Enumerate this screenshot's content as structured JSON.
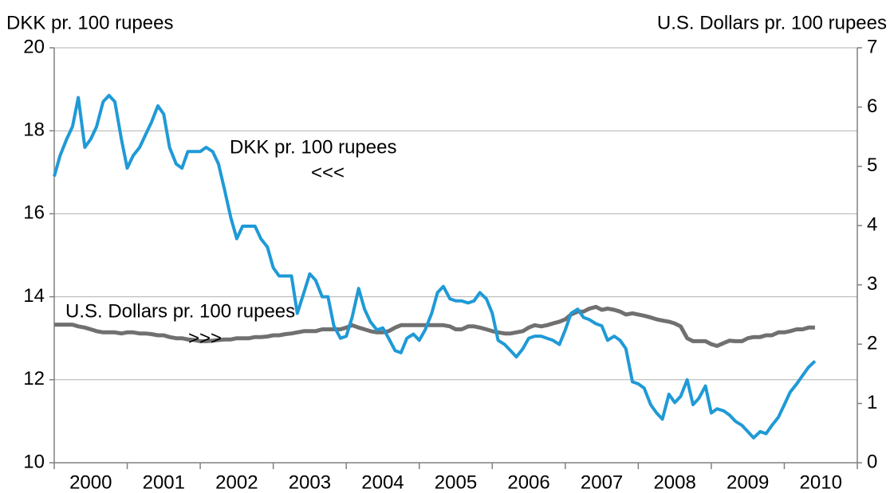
{
  "chart_data": {
    "type": "line",
    "ylabel": "DKK pr. 100 rupees",
    "y2label": "U.S. Dollars pr. 100 rupees",
    "annotations": [
      {
        "text": "DKK pr. 100 rupees"
      },
      {
        "text": "<<<"
      },
      {
        "text": "U.S. Dollars pr. 100 rupees"
      },
      {
        "text": ">>>"
      }
    ],
    "xlim": [
      2000,
      2011
    ],
    "xticks": [
      2000,
      2001,
      2002,
      2003,
      2004,
      2005,
      2006,
      2007,
      2008,
      2009,
      2010,
      2011
    ],
    "xlabels": [
      {
        "value": 2000.5,
        "label": "2000"
      },
      {
        "value": 2001.5,
        "label": "2001"
      },
      {
        "value": 2002.5,
        "label": "2002"
      },
      {
        "value": 2003.5,
        "label": "2003"
      },
      {
        "value": 2004.5,
        "label": "2004"
      },
      {
        "value": 2005.5,
        "label": "2005"
      },
      {
        "value": 2006.5,
        "label": "2006"
      },
      {
        "value": 2007.5,
        "label": "2007"
      },
      {
        "value": 2008.5,
        "label": "2008"
      },
      {
        "value": 2009.5,
        "label": "2009"
      },
      {
        "value": 2010.5,
        "label": "2010"
      }
    ],
    "ylim": [
      10,
      20
    ],
    "yticks": [
      10,
      12,
      14,
      16,
      18,
      20
    ],
    "y2lim": [
      0,
      7
    ],
    "y2ticks": [
      0,
      1,
      2,
      3,
      4,
      5,
      6,
      7
    ],
    "grid": true,
    "x": [
      2000,
      2000.08,
      2000.17,
      2000.25,
      2000.33,
      2000.42,
      2000.5,
      2000.58,
      2000.67,
      2000.75,
      2000.83,
      2000.92,
      2001,
      2001.08,
      2001.17,
      2001.25,
      2001.33,
      2001.42,
      2001.5,
      2001.58,
      2001.67,
      2001.75,
      2001.83,
      2001.92,
      2002,
      2002.08,
      2002.17,
      2002.25,
      2002.33,
      2002.42,
      2002.5,
      2002.58,
      2002.67,
      2002.75,
      2002.83,
      2002.92,
      2003,
      2003.08,
      2003.17,
      2003.25,
      2003.33,
      2003.42,
      2003.5,
      2003.58,
      2003.67,
      2003.75,
      2003.83,
      2003.92,
      2004,
      2004.08,
      2004.17,
      2004.25,
      2004.33,
      2004.42,
      2004.5,
      2004.58,
      2004.67,
      2004.75,
      2004.83,
      2004.92,
      2005,
      2005.08,
      2005.17,
      2005.25,
      2005.33,
      2005.42,
      2005.5,
      2005.58,
      2005.67,
      2005.75,
      2005.83,
      2005.92,
      2006,
      2006.08,
      2006.17,
      2006.25,
      2006.33,
      2006.42,
      2006.5,
      2006.58,
      2006.67,
      2006.75,
      2006.83,
      2006.92,
      2007,
      2007.08,
      2007.17,
      2007.25,
      2007.33,
      2007.42,
      2007.5,
      2007.58,
      2007.67,
      2007.75,
      2007.83,
      2007.92,
      2008,
      2008.08,
      2008.17,
      2008.25,
      2008.33,
      2008.42,
      2008.5,
      2008.58,
      2008.67,
      2008.75,
      2008.83,
      2008.92,
      2009,
      2009.08,
      2009.17,
      2009.25,
      2009.33,
      2009.42,
      2009.5,
      2009.58,
      2009.67,
      2009.75,
      2009.83,
      2009.92,
      2010,
      2010.08,
      2010.17,
      2010.25,
      2010.33,
      2010.42
    ],
    "series": [
      {
        "name": "DKK pr. 100 rupees",
        "color": "#1f9ad6",
        "axis": "y",
        "values": [
          16.9,
          17.4,
          17.8,
          18.1,
          18.8,
          17.6,
          17.8,
          18.1,
          18.7,
          18.85,
          18.7,
          17.8,
          17.1,
          17.4,
          17.6,
          17.9,
          18.2,
          18.6,
          18.4,
          17.6,
          17.2,
          17.1,
          17.5,
          17.5,
          17.5,
          17.6,
          17.5,
          17.2,
          16.6,
          15.9,
          15.4,
          15.7,
          15.7,
          15.7,
          15.4,
          15.2,
          14.7,
          14.5,
          14.5,
          14.5,
          13.6,
          14.1,
          14.55,
          14.4,
          14.0,
          14.0,
          13.3,
          13.0,
          13.05,
          13.5,
          14.2,
          13.7,
          13.4,
          13.2,
          13.25,
          13.0,
          12.7,
          12.65,
          13.0,
          13.1,
          12.95,
          13.2,
          13.6,
          14.1,
          14.25,
          13.95,
          13.9,
          13.9,
          13.85,
          13.9,
          14.1,
          13.95,
          13.6,
          12.95,
          12.85,
          12.7,
          12.55,
          12.75,
          13.0,
          13.05,
          13.05,
          13.0,
          12.95,
          12.85,
          13.2,
          13.6,
          13.7,
          13.5,
          13.45,
          13.35,
          13.3,
          12.95,
          13.05,
          12.95,
          12.75,
          11.95,
          11.9,
          11.8,
          11.4,
          11.2,
          11.05,
          11.65,
          11.45,
          11.6,
          12.0,
          11.4,
          11.55,
          11.85,
          11.2,
          11.3,
          11.25,
          11.15,
          11.0,
          10.9,
          10.75,
          10.6,
          10.75,
          10.7,
          10.9,
          11.1,
          11.4,
          11.7,
          11.9,
          12.1,
          12.3,
          12.45
        ]
      },
      {
        "name": "U.S. Dollars pr. 100 rupees",
        "color": "#707070",
        "axis": "y2",
        "values": [
          2.33,
          2.33,
          2.33,
          2.33,
          2.3,
          2.28,
          2.25,
          2.22,
          2.2,
          2.2,
          2.2,
          2.18,
          2.2,
          2.2,
          2.18,
          2.18,
          2.17,
          2.15,
          2.15,
          2.12,
          2.1,
          2.1,
          2.08,
          2.07,
          2.05,
          2.05,
          2.06,
          2.07,
          2.08,
          2.08,
          2.1,
          2.1,
          2.1,
          2.12,
          2.12,
          2.13,
          2.15,
          2.15,
          2.17,
          2.18,
          2.2,
          2.22,
          2.22,
          2.22,
          2.25,
          2.25,
          2.25,
          2.25,
          2.28,
          2.32,
          2.28,
          2.25,
          2.22,
          2.2,
          2.2,
          2.22,
          2.28,
          2.32,
          2.32,
          2.32,
          2.32,
          2.32,
          2.32,
          2.32,
          2.32,
          2.3,
          2.25,
          2.25,
          2.3,
          2.3,
          2.28,
          2.25,
          2.22,
          2.2,
          2.18,
          2.18,
          2.2,
          2.22,
          2.28,
          2.32,
          2.3,
          2.32,
          2.35,
          2.38,
          2.42,
          2.5,
          2.55,
          2.55,
          2.6,
          2.63,
          2.58,
          2.6,
          2.58,
          2.55,
          2.5,
          2.52,
          2.5,
          2.48,
          2.45,
          2.42,
          2.4,
          2.38,
          2.35,
          2.3,
          2.1,
          2.05,
          2.05,
          2.05,
          2.0,
          1.97,
          2.02,
          2.06,
          2.05,
          2.05,
          2.1,
          2.12,
          2.12,
          2.15,
          2.15,
          2.2,
          2.2,
          2.22,
          2.25,
          2.25,
          2.28,
          2.28
        ]
      }
    ]
  }
}
